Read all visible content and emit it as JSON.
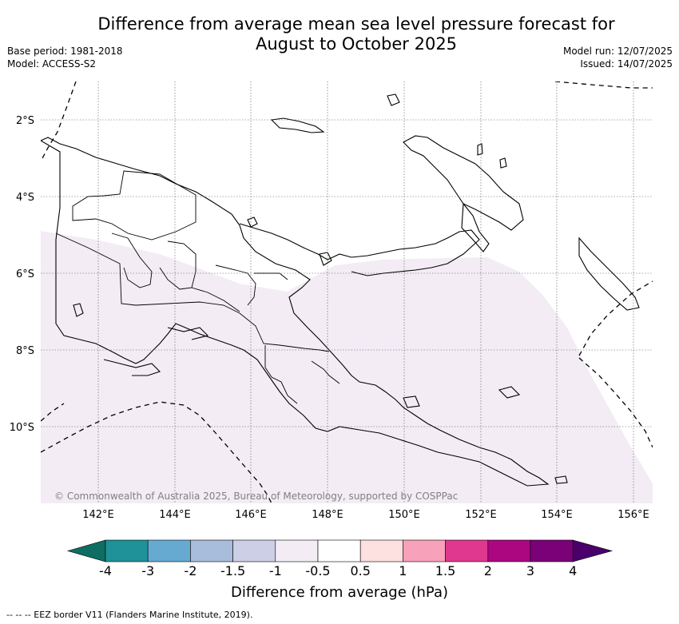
{
  "title_line1": "Difference from average mean sea level pressure forecast for",
  "title_line2": "August to October 2025",
  "base_period": "Base period: 1981-2018",
  "model": "Model: ACCESS-S2",
  "model_run": "Model run: 12/07/2025",
  "issued": "Issued: 14/07/2025",
  "copyright": "© Commonwealth of Australia 2025, Bureau of Meteorology, supported by COSPPac",
  "lat_labels": [
    "2°S",
    "4°S",
    "6°S",
    "8°S",
    "10°S"
  ],
  "lon_labels": [
    "142°E",
    "144°E",
    "146°E",
    "148°E",
    "150°E",
    "152°E",
    "154°E",
    "156°E"
  ],
  "colorbar": {
    "label": "Difference from average (hPa)",
    "ticks": [
      "-4",
      "-3",
      "-2",
      "-1.5",
      "-1",
      "-0.5",
      "0.5",
      "1",
      "1.5",
      "2",
      "3",
      "4"
    ],
    "colors": [
      "#0e6e63",
      "#1e9199",
      "#66aad1",
      "#a8bcdb",
      "#cdcfe6",
      "#f3ecf5",
      "#ffffff",
      "#fde0e0",
      "#f7a2ba",
      "#e0378f",
      "#ac0681",
      "#7a0177",
      "#49006a"
    ]
  },
  "footer": "-- -- -- EEZ border V11 (Flanders Marine Institute, 2019)."
}
